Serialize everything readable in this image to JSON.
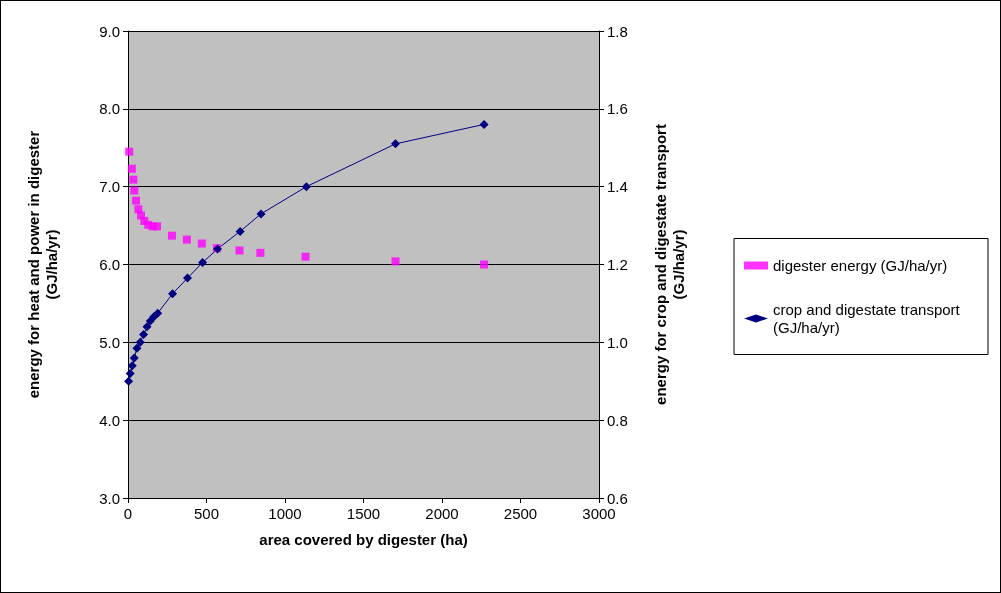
{
  "chart_data": {
    "type": "scatter",
    "xlabel": "area covered by digester (ha)",
    "ylabel": "energy for heat and power in digester\n(GJ/ha/yr)",
    "y2label": "energy for crop and digestate transport\n(GJ/ha/yr)",
    "xlim": [
      0,
      3000
    ],
    "xticks": [
      0,
      500,
      1000,
      1500,
      2000,
      2500,
      3000
    ],
    "ylim": [
      3,
      9
    ],
    "yticks": [
      {
        "value": 3,
        "label": "3.0"
      },
      {
        "value": 4,
        "label": "4.0"
      },
      {
        "value": 5,
        "label": "5.0"
      },
      {
        "value": 6,
        "label": "6.0"
      },
      {
        "value": 7,
        "label": "7.0"
      },
      {
        "value": 8,
        "label": "8.0"
      },
      {
        "value": 9,
        "label": "9.0"
      }
    ],
    "y2lim": [
      0.6,
      1.8
    ],
    "y2ticks": [
      0.6,
      0.8,
      {
        "value": 1,
        "label": "1.0"
      },
      1.2,
      1.4,
      1.6,
      1.8
    ],
    "grid": "y",
    "legend": "right",
    "series": [
      {
        "name": "digester energy (GJ/ha/yr)",
        "marker": "square",
        "color": "#ff00ff",
        "x": [
          8,
          25,
          34,
          40,
          51,
          66,
          83,
          104,
          129,
          157,
          185,
          280,
          375,
          470,
          566,
          710,
          843,
          1131,
          1704,
          2268
        ],
        "values": [
          7.45,
          7.23,
          7.09,
          6.95,
          6.82,
          6.71,
          6.63,
          6.56,
          6.51,
          6.49,
          6.49,
          6.37,
          6.32,
          6.27,
          6.21,
          6.18,
          6.15,
          6.1,
          6.04,
          6.0
        ]
      },
      {
        "name": "crop and digestate transport (GJ/ha/yr)",
        "type": "line",
        "axis": "y2",
        "marker": "diamond",
        "color": "#000080",
        "x": [
          4,
          14,
          27,
          40,
          57,
          78,
          99,
          121,
          142,
          163,
          189,
          284,
          379,
          475,
          570,
          714,
          847,
          1136,
          1704,
          2268
        ],
        "values": [
          0.9,
          0.92,
          0.94,
          0.96,
          0.985,
          1.0,
          1.02,
          1.04,
          1.055,
          1.065,
          1.075,
          1.125,
          1.165,
          1.205,
          1.24,
          1.285,
          1.33,
          1.4,
          1.51,
          1.56
        ]
      }
    ]
  }
}
